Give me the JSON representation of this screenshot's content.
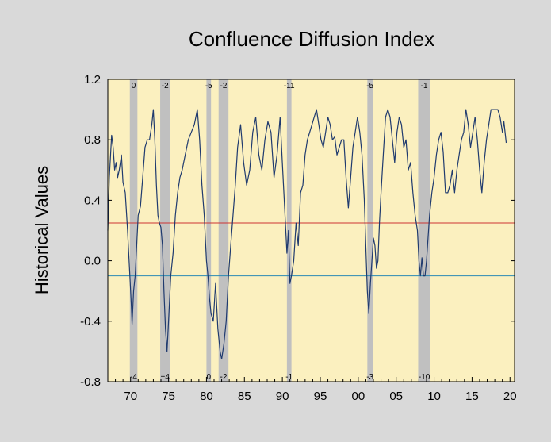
{
  "chart_data": {
    "type": "line",
    "title": "Confluence Diffusion Index",
    "xlabel": "",
    "ylabel": "Historical Values",
    "xlim": [
      1967,
      2020.6
    ],
    "ylim": [
      -0.8,
      1.2
    ],
    "yticks": [
      1.2,
      0.8,
      0.4,
      0.0,
      -0.4,
      -0.8
    ],
    "ytick_labels": [
      "1.2",
      "0.8",
      "0.4",
      "0.0",
      "-0.4",
      "-0.8"
    ],
    "xticks": [
      1970,
      1975,
      1980,
      1985,
      1990,
      1995,
      2000,
      2005,
      2010,
      2015,
      2020
    ],
    "xtick_labels": [
      "70",
      "75",
      "80",
      "85",
      "90",
      "95",
      "00",
      "05",
      "10",
      "15",
      "20"
    ],
    "grid": false,
    "colors": {
      "plot_background": "#fbf0bf",
      "outer_background": "#d9d9d9",
      "series": "#1f3a6e",
      "upper_threshold": "#cc3333",
      "lower_threshold": "#2a8ab5",
      "recession": "#c0c0c0"
    },
    "reference_lines": [
      {
        "y": 0.25,
        "color": "#cc3333"
      },
      {
        "y": -0.1,
        "color": "#2a8ab5"
      }
    ],
    "recessions": [
      {
        "start": 1969.9,
        "end": 1970.9,
        "top_label": "0",
        "bottom_label": "-4"
      },
      {
        "start": 1973.9,
        "end": 1975.2,
        "top_label": "-2",
        "bottom_label": "+4"
      },
      {
        "start": 1980.0,
        "end": 1980.6,
        "top_label": "-5",
        "bottom_label": "0"
      },
      {
        "start": 1981.6,
        "end": 1982.9,
        "top_label": "-2",
        "bottom_label": "-2"
      },
      {
        "start": 1990.6,
        "end": 1991.2,
        "top_label": "-11",
        "bottom_label": "-1"
      },
      {
        "start": 2001.2,
        "end": 2001.9,
        "top_label": "-5",
        "bottom_label": "-3"
      },
      {
        "start": 2007.9,
        "end": 2009.5,
        "top_label": "-1",
        "bottom_label": "-10"
      }
    ],
    "series": [
      {
        "x": [
          1967.0,
          1967.2,
          1967.5,
          1967.7,
          1967.9,
          1968.1,
          1968.3,
          1968.5,
          1968.8,
          1969.0,
          1969.3,
          1969.6,
          1969.9,
          1970.1,
          1970.2,
          1970.4,
          1970.6,
          1970.8,
          1971.0,
          1971.3,
          1971.6,
          1971.9,
          1972.2,
          1972.5,
          1972.8,
          1973.0,
          1973.2,
          1973.4,
          1973.6,
          1973.8,
          1974.0,
          1974.2,
          1974.4,
          1974.6,
          1974.8,
          1975.0,
          1975.3,
          1975.6,
          1975.9,
          1976.2,
          1976.5,
          1976.8,
          1977.2,
          1977.6,
          1978.0,
          1978.4,
          1978.8,
          1979.1,
          1979.4,
          1979.7,
          1980.0,
          1980.2,
          1980.4,
          1980.6,
          1980.9,
          1981.2,
          1981.5,
          1981.8,
          1982.0,
          1982.3,
          1982.6,
          1982.9,
          1983.2,
          1983.5,
          1983.8,
          1984.1,
          1984.5,
          1984.9,
          1985.3,
          1985.7,
          1986.1,
          1986.5,
          1986.9,
          1987.3,
          1987.7,
          1988.1,
          1988.5,
          1988.9,
          1989.3,
          1989.7,
          1990.0,
          1990.3,
          1990.6,
          1990.8,
          1991.0,
          1991.2,
          1991.5,
          1991.8,
          1992.1,
          1992.4,
          1992.7,
          1993.0,
          1993.3,
          1993.6,
          1993.9,
          1994.2,
          1994.5,
          1994.8,
          1995.1,
          1995.4,
          1995.7,
          1996.0,
          1996.3,
          1996.6,
          1996.9,
          1997.2,
          1997.5,
          1997.8,
          1998.1,
          1998.4,
          1998.7,
          1999.0,
          1999.3,
          1999.6,
          1999.9,
          2000.2,
          2000.5,
          2000.8,
          2001.0,
          2001.2,
          2001.4,
          2001.6,
          2001.8,
          2002.0,
          2002.2,
          2002.4,
          2002.6,
          2002.8,
          2003.0,
          2003.3,
          2003.6,
          2003.9,
          2004.2,
          2004.5,
          2004.8,
          2005.1,
          2005.4,
          2005.7,
          2006.0,
          2006.3,
          2006.6,
          2006.9,
          2007.2,
          2007.5,
          2007.8,
          2008.0,
          2008.2,
          2008.4,
          2008.6,
          2008.8,
          2009.0,
          2009.2,
          2009.4,
          2009.7,
          2010.0,
          2010.3,
          2010.6,
          2010.9,
          2011.2,
          2011.5,
          2011.8,
          2012.1,
          2012.4,
          2012.7,
          2013.0,
          2013.3,
          2013.6,
          2013.9,
          2014.2,
          2014.5,
          2014.8,
          2015.1,
          2015.4,
          2015.7,
          2016.0,
          2016.3,
          2016.6,
          2016.9,
          2017.2,
          2017.5,
          2017.8,
          2018.1,
          2018.4,
          2018.7,
          2019.0,
          2019.2,
          2019.5
        ],
        "y": [
          0.2,
          0.55,
          0.83,
          0.75,
          0.6,
          0.65,
          0.55,
          0.6,
          0.7,
          0.52,
          0.45,
          0.2,
          -0.1,
          -0.3,
          -0.42,
          -0.2,
          -0.1,
          0.1,
          0.3,
          0.36,
          0.55,
          0.75,
          0.8,
          0.8,
          0.9,
          1.0,
          0.8,
          0.5,
          0.3,
          0.25,
          0.22,
          0.1,
          -0.2,
          -0.45,
          -0.6,
          -0.4,
          -0.1,
          0.05,
          0.3,
          0.45,
          0.55,
          0.6,
          0.7,
          0.8,
          0.85,
          0.9,
          1.0,
          0.8,
          0.5,
          0.3,
          0.0,
          -0.1,
          -0.25,
          -0.35,
          -0.4,
          -0.15,
          -0.45,
          -0.6,
          -0.65,
          -0.55,
          -0.4,
          -0.1,
          0.1,
          0.3,
          0.5,
          0.75,
          0.9,
          0.65,
          0.5,
          0.6,
          0.85,
          0.95,
          0.7,
          0.6,
          0.8,
          0.92,
          0.85,
          0.55,
          0.7,
          0.95,
          0.65,
          0.35,
          0.05,
          0.2,
          -0.15,
          -0.1,
          0.0,
          0.25,
          0.1,
          0.45,
          0.5,
          0.7,
          0.8,
          0.85,
          0.9,
          0.95,
          1.0,
          0.9,
          0.8,
          0.75,
          0.85,
          0.95,
          0.9,
          0.8,
          0.82,
          0.7,
          0.75,
          0.8,
          0.8,
          0.55,
          0.35,
          0.55,
          0.75,
          0.85,
          0.95,
          0.85,
          0.7,
          0.4,
          0.1,
          -0.2,
          -0.35,
          -0.15,
          0.0,
          0.15,
          0.1,
          -0.05,
          0.0,
          0.25,
          0.45,
          0.7,
          0.95,
          1.0,
          0.95,
          0.8,
          0.65,
          0.85,
          0.95,
          0.9,
          0.75,
          0.8,
          0.6,
          0.65,
          0.45,
          0.3,
          0.2,
          0.0,
          -0.1,
          0.02,
          -0.1,
          -0.1,
          0.0,
          0.15,
          0.3,
          0.45,
          0.55,
          0.7,
          0.8,
          0.85,
          0.72,
          0.45,
          0.45,
          0.5,
          0.6,
          0.45,
          0.6,
          0.7,
          0.8,
          0.85,
          1.0,
          0.9,
          0.75,
          0.85,
          0.95,
          0.8,
          0.6,
          0.45,
          0.65,
          0.8,
          0.9,
          1.0,
          1.0,
          1.0,
          1.0,
          0.95,
          0.85,
          0.92,
          0.78
        ]
      }
    ]
  }
}
